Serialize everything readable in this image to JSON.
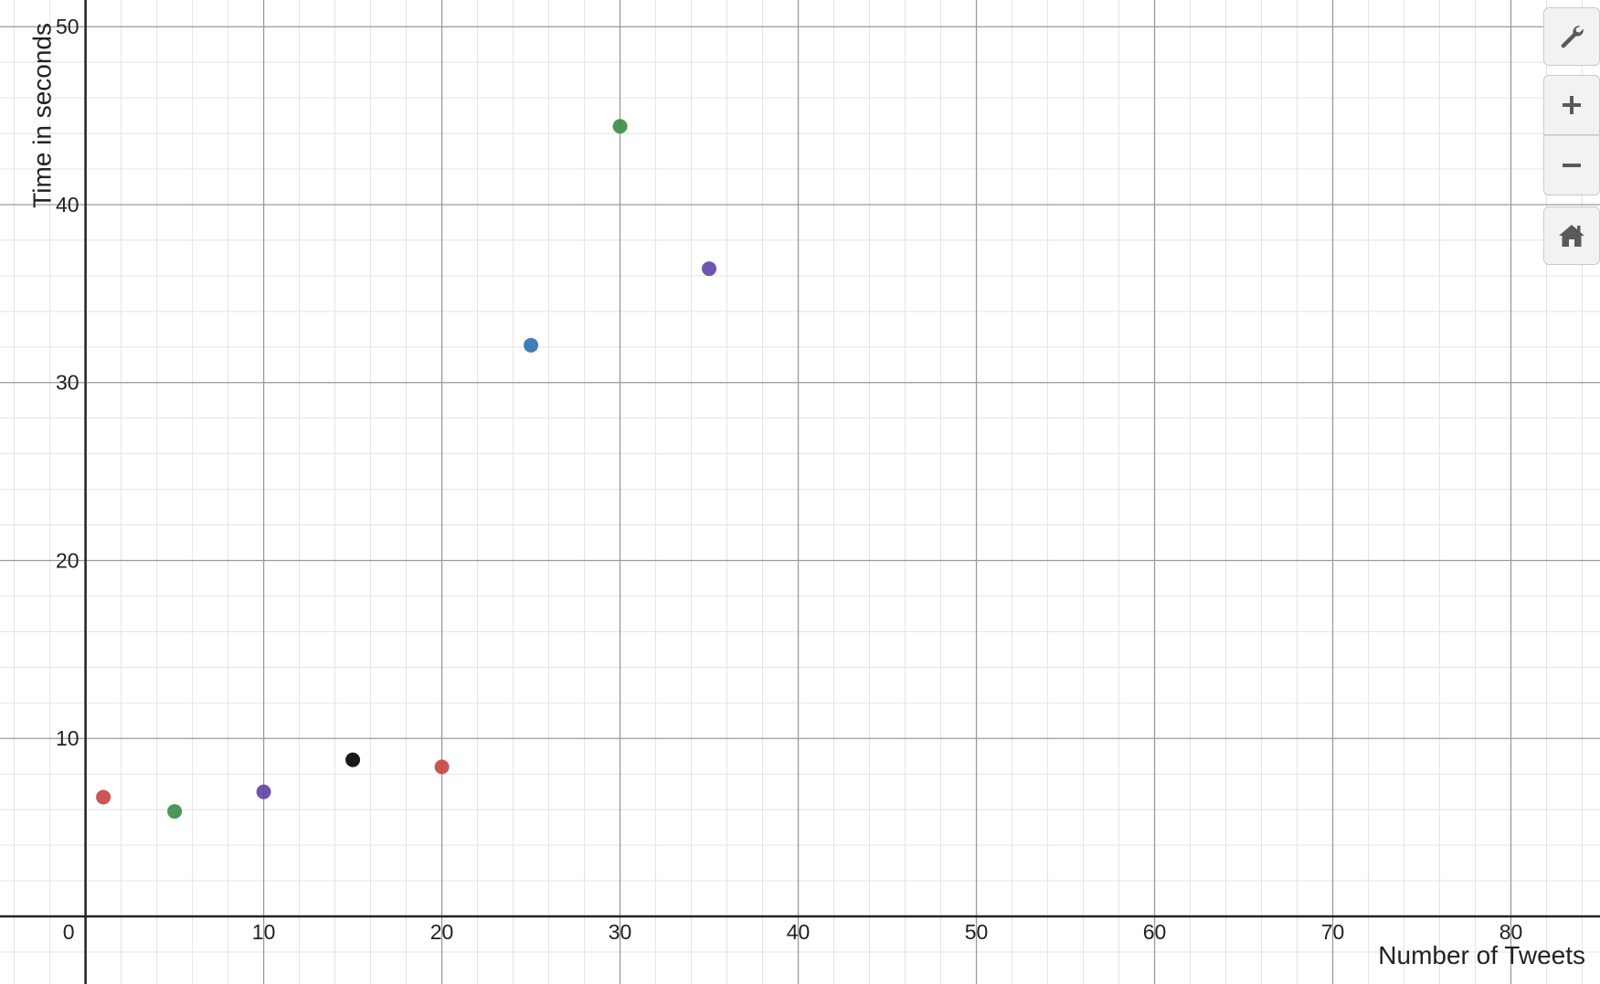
{
  "toolbar": {
    "settings_icon": "wrench-icon",
    "zoom_in_icon": "plus-icon",
    "zoom_out_icon": "minus-icon",
    "home_icon": "home-icon"
  },
  "colors": {
    "red": "#c74440",
    "green": "#388c46",
    "purple": "#6042a6",
    "black": "#000000",
    "blue": "#2d70b3"
  },
  "chart_data": {
    "type": "scatter",
    "title": "",
    "xlabel": "Number of Tweets",
    "ylabel": "Time in seconds",
    "xlim": [
      -4.8,
      85
    ],
    "ylim": [
      -3.8,
      51.5
    ],
    "x_ticks": [
      0,
      10,
      20,
      30,
      40,
      50,
      60,
      70,
      80
    ],
    "y_ticks": [
      10,
      20,
      30,
      40,
      50
    ],
    "x_tick_labels": [
      "0",
      "10",
      "20",
      "30",
      "40",
      "50",
      "60",
      "70",
      "80"
    ],
    "y_tick_labels": [
      "10",
      "20",
      "30",
      "40",
      "50"
    ],
    "grid": true,
    "major_grid_step": 10,
    "minor_grid_step": 2,
    "points": [
      {
        "x": 1,
        "y": 6.7,
        "color": "#c74440"
      },
      {
        "x": 5,
        "y": 5.9,
        "color": "#388c46"
      },
      {
        "x": 10,
        "y": 7.0,
        "color": "#6042a6"
      },
      {
        "x": 15,
        "y": 8.8,
        "color": "#000000"
      },
      {
        "x": 20,
        "y": 8.4,
        "color": "#c74440"
      },
      {
        "x": 25,
        "y": 32.1,
        "color": "#2d70b3"
      },
      {
        "x": 30,
        "y": 44.4,
        "color": "#388c46"
      },
      {
        "x": 35,
        "y": 36.4,
        "color": "#6042a6"
      }
    ]
  }
}
